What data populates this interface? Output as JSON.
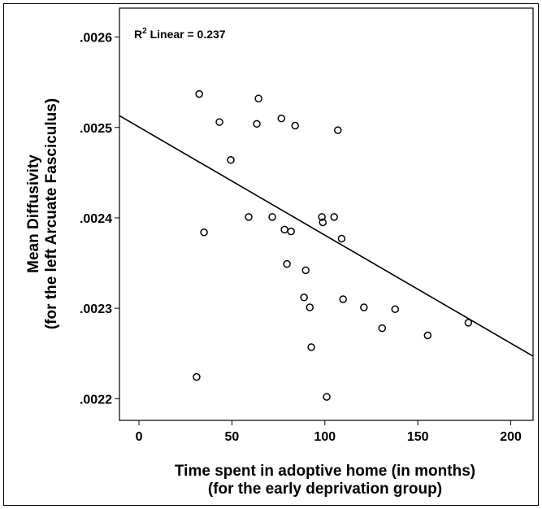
{
  "chart_data": {
    "type": "scatter",
    "annotation": {
      "base": "R",
      "sup": "2",
      "text": " Linear = 0.237"
    },
    "ylabel": [
      "Mean Diffusivity",
      "(for the left Arcuate Fasciculus)"
    ],
    "xlabel": [
      "Time spent in adoptive home (in months)",
      "(for the early deprivation group)"
    ],
    "x": [
      32.4,
      64.3,
      43.3,
      76.6,
      63.4,
      84,
      107,
      49.4,
      59,
      71.7,
      98.4,
      105,
      98.9,
      35,
      78.3,
      81.8,
      109,
      79.6,
      89.7,
      88.8,
      91.9,
      109.8,
      121,
      137.8,
      130.8,
      155.3,
      177.2,
      92.7,
      31,
      101
    ],
    "values": [
      0.002537,
      0.002532,
      0.002506,
      0.00251,
      0.002504,
      0.002502,
      0.002497,
      0.002464,
      0.002401,
      0.002401,
      0.002401,
      0.002401,
      0.002395,
      0.002384,
      0.002387,
      0.002385,
      0.002377,
      0.002349,
      0.002342,
      0.002312,
      0.002301,
      0.00231,
      0.002301,
      0.002299,
      0.002278,
      0.00227,
      0.002284,
      0.002257,
      0.002224,
      0.002202
    ],
    "fit": {
      "x": [
        -10.5,
        212
      ],
      "y": [
        0.002513,
        0.002247
      ]
    },
    "xlim": [
      -10.5,
      212
    ],
    "ylim": [
      0.002176,
      0.002632
    ],
    "xticks": [
      0,
      50,
      100,
      150,
      200
    ],
    "yticks": [
      {
        "value": 0.0022,
        "label": ".0022"
      },
      {
        "value": 0.0023,
        "label": ".0023"
      },
      {
        "value": 0.0024,
        "label": ".0024"
      },
      {
        "value": 0.0025,
        "label": ".0025"
      },
      {
        "value": 0.0026,
        "label": ".0026"
      }
    ]
  }
}
